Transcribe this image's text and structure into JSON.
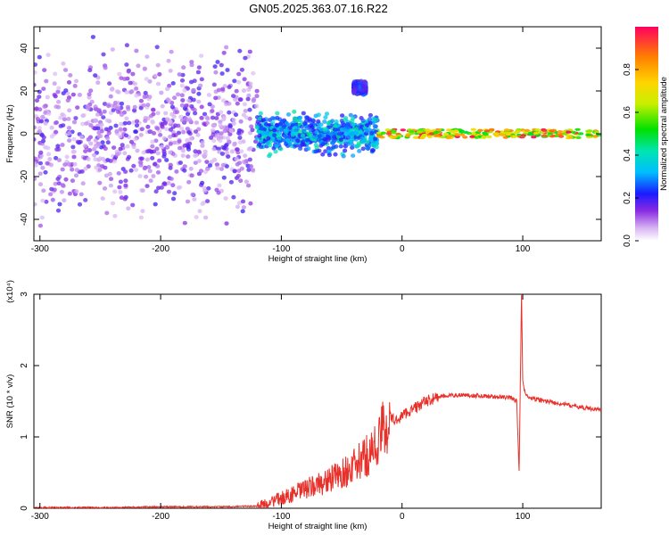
{
  "title": "GN05.2025.363.07.16.R22",
  "chart_data": [
    {
      "type": "heatmap",
      "xlabel": "Height of straight line (km)",
      "ylabel": "Frequency (Hz)",
      "xlim": [
        -305,
        165
      ],
      "ylim": [
        -50,
        50
      ],
      "xticks": [
        -300,
        -200,
        -100,
        0,
        100
      ],
      "yticks": [
        -40,
        -20,
        0,
        20,
        40
      ],
      "colorbar": {
        "label": "Normalized spectral amplitude",
        "range": [
          0,
          1
        ],
        "ticks": [
          0.0,
          0.2,
          0.4,
          0.6,
          0.8
        ]
      },
      "regions": [
        {
          "x_range": [
            -305,
            -120
          ],
          "freq_spread": [
            -50,
            50
          ],
          "amplitude": [
            0.05,
            0.2
          ]
        },
        {
          "x_range": [
            -120,
            -20
          ],
          "freq_spread": [
            -12,
            12
          ],
          "amplitude": [
            0.2,
            0.45
          ]
        },
        {
          "x_range": [
            -40,
            -30
          ],
          "freq_spread": [
            18,
            25
          ],
          "amplitude": [
            0.15,
            0.3
          ]
        },
        {
          "x_range": [
            -20,
            165
          ],
          "freq_spread": [
            -2,
            2
          ],
          "amplitude": [
            0.5,
            1.0
          ]
        }
      ]
    },
    {
      "type": "line",
      "xlabel": "Height of straight line (km)",
      "ylabel": "SNR (10 * v/v)",
      "y_multiplier": "(x10⁴)",
      "xlim": [
        -305,
        165
      ],
      "ylim": [
        0,
        3
      ],
      "xticks": [
        -300,
        -200,
        -100,
        0,
        100
      ],
      "yticks": [
        0,
        1,
        2,
        3
      ],
      "series": [
        {
          "color": "#e8302a",
          "x": [
            -305,
            -250,
            -200,
            -150,
            -120,
            -110,
            -100,
            -90,
            -80,
            -70,
            -60,
            -50,
            -40,
            -30,
            -20,
            -15,
            -10,
            -5,
            0,
            10,
            20,
            30,
            40,
            50,
            60,
            70,
            80,
            90,
            95,
            97,
            99,
            100,
            102,
            105,
            110,
            120,
            130,
            140,
            150,
            165
          ],
          "y": [
            0.01,
            0.01,
            0.02,
            0.02,
            0.03,
            0.08,
            0.14,
            0.2,
            0.27,
            0.33,
            0.4,
            0.48,
            0.58,
            0.72,
            0.9,
            1.15,
            1.28,
            1.22,
            1.3,
            1.4,
            1.5,
            1.56,
            1.58,
            1.59,
            1.58,
            1.57,
            1.56,
            1.55,
            1.5,
            0.5,
            3.0,
            1.8,
            1.6,
            1.55,
            1.53,
            1.5,
            1.47,
            1.44,
            1.41,
            1.38
          ]
        }
      ]
    }
  ]
}
